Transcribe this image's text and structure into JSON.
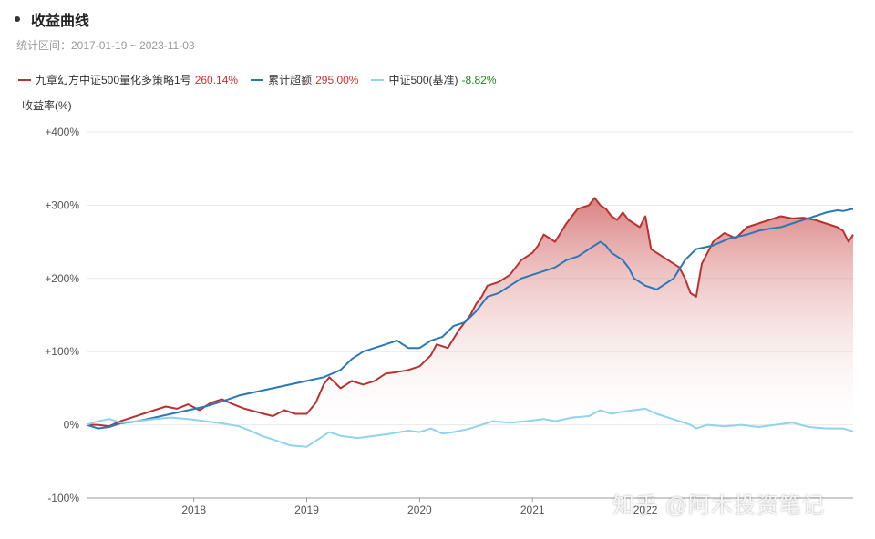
{
  "title": "收益曲线",
  "subtitle": "统计区间：2017-01-19 ~ 2023-11-03",
  "watermark": "知乎 @阿木投资笔记",
  "chart_data": {
    "type": "line",
    "title": "收益曲线",
    "ylabel": "收益率(%)",
    "xlabel": "",
    "ylim": [
      -100,
      400
    ],
    "yticks": [
      -100,
      0,
      100,
      200,
      300,
      400
    ],
    "ytick_labels": [
      "-100%",
      "0%",
      "+100%",
      "+200%",
      "+300%",
      "+400%"
    ],
    "xlim": [
      2017.05,
      2023.84
    ],
    "xticks": [
      2018,
      2019,
      2020,
      2021,
      2022
    ],
    "xtick_labels": [
      "2018",
      "2019",
      "2020",
      "2021",
      "2022"
    ],
    "grid": true,
    "legend_position": "top-left",
    "series": [
      {
        "name": "九章幻方中证500量化多策略1号",
        "value_label": "260.14%",
        "color": "#b83232",
        "value_color": "#d03030",
        "fill": true,
        "x": [
          2017.05,
          2017.15,
          2017.25,
          2017.35,
          2017.45,
          2017.55,
          2017.65,
          2017.75,
          2017.85,
          2017.95,
          2018.05,
          2018.15,
          2018.25,
          2018.35,
          2018.45,
          2018.55,
          2018.62,
          2018.7,
          2018.8,
          2018.9,
          2019.0,
          2019.08,
          2019.15,
          2019.2,
          2019.3,
          2019.4,
          2019.5,
          2019.6,
          2019.7,
          2019.8,
          2019.9,
          2020.0,
          2020.1,
          2020.15,
          2020.25,
          2020.35,
          2020.45,
          2020.5,
          2020.55,
          2020.6,
          2020.7,
          2020.8,
          2020.9,
          2021.0,
          2021.05,
          2021.1,
          2021.2,
          2021.3,
          2021.4,
          2021.5,
          2021.55,
          2021.6,
          2021.65,
          2021.7,
          2021.75,
          2021.8,
          2021.85,
          2021.9,
          2021.95,
          2022.0,
          2022.05,
          2022.1,
          2022.15,
          2022.2,
          2022.25,
          2022.3,
          2022.35,
          2022.4,
          2022.45,
          2022.5,
          2022.6,
          2022.7,
          2022.8,
          2022.9,
          2023.0,
          2023.1,
          2023.2,
          2023.3,
          2023.4,
          2023.5,
          2023.6,
          2023.7,
          2023.75,
          2023.8,
          2023.84
        ],
        "y": [
          0,
          0,
          -2,
          5,
          10,
          15,
          20,
          25,
          22,
          28,
          20,
          30,
          35,
          28,
          22,
          18,
          15,
          12,
          20,
          15,
          15,
          30,
          55,
          65,
          50,
          60,
          55,
          60,
          70,
          72,
          75,
          80,
          95,
          110,
          105,
          130,
          150,
          165,
          175,
          190,
          195,
          205,
          225,
          235,
          245,
          260,
          250,
          275,
          295,
          300,
          310,
          300,
          295,
          285,
          280,
          290,
          280,
          275,
          270,
          285,
          240,
          235,
          230,
          225,
          220,
          215,
          200,
          180,
          175,
          220,
          250,
          262,
          255,
          270,
          275,
          280,
          285,
          282,
          283,
          280,
          275,
          270,
          265,
          250,
          260
        ]
      },
      {
        "name": "累计超额",
        "value_label": "295.00%",
        "color": "#2a78b8",
        "value_color": "#d03030",
        "fill": false,
        "x": [
          2017.05,
          2017.15,
          2017.25,
          2017.35,
          2017.5,
          2017.65,
          2017.8,
          2017.95,
          2018.1,
          2018.25,
          2018.4,
          2018.55,
          2018.7,
          2018.85,
          2019.0,
          2019.15,
          2019.3,
          2019.4,
          2019.5,
          2019.6,
          2019.7,
          2019.8,
          2019.9,
          2020.0,
          2020.1,
          2020.2,
          2020.3,
          2020.4,
          2020.5,
          2020.6,
          2020.7,
          2020.8,
          2020.9,
          2021.0,
          2021.1,
          2021.2,
          2021.3,
          2021.4,
          2021.5,
          2021.6,
          2021.65,
          2021.7,
          2021.8,
          2021.85,
          2021.9,
          2022.0,
          2022.1,
          2022.2,
          2022.25,
          2022.35,
          2022.45,
          2022.6,
          2022.75,
          2022.9,
          2023.0,
          2023.1,
          2023.2,
          2023.3,
          2023.4,
          2023.5,
          2023.6,
          2023.7,
          2023.75,
          2023.84
        ],
        "y": [
          0,
          -5,
          -3,
          2,
          5,
          10,
          15,
          20,
          25,
          32,
          40,
          45,
          50,
          55,
          60,
          65,
          75,
          90,
          100,
          105,
          110,
          115,
          105,
          105,
          115,
          120,
          135,
          140,
          155,
          175,
          180,
          190,
          200,
          205,
          210,
          215,
          225,
          230,
          240,
          250,
          245,
          235,
          225,
          215,
          200,
          190,
          185,
          195,
          200,
          225,
          240,
          245,
          255,
          260,
          265,
          268,
          270,
          275,
          280,
          285,
          290,
          293,
          292,
          295
        ]
      },
      {
        "name": "中证500(基准)",
        "value_label": "-8.82%",
        "color": "#8fd3ee",
        "value_color": "#1a8a1a",
        "fill": false,
        "x": [
          2017.05,
          2017.15,
          2017.25,
          2017.35,
          2017.5,
          2017.65,
          2017.8,
          2017.95,
          2018.1,
          2018.25,
          2018.4,
          2018.5,
          2018.6,
          2018.7,
          2018.85,
          2019.0,
          2019.1,
          2019.2,
          2019.3,
          2019.45,
          2019.6,
          2019.75,
          2019.9,
          2020.0,
          2020.1,
          2020.2,
          2020.3,
          2020.45,
          2020.55,
          2020.65,
          2020.8,
          2020.95,
          2021.1,
          2021.2,
          2021.35,
          2021.5,
          2021.6,
          2021.7,
          2021.8,
          2021.9,
          2022.0,
          2022.1,
          2022.2,
          2022.3,
          2022.4,
          2022.45,
          2022.55,
          2022.7,
          2022.85,
          2023.0,
          2023.15,
          2023.3,
          2023.45,
          2023.6,
          2023.75,
          2023.84
        ],
        "y": [
          0,
          5,
          8,
          3,
          5,
          8,
          10,
          8,
          5,
          2,
          -2,
          -8,
          -15,
          -20,
          -28,
          -30,
          -20,
          -10,
          -15,
          -18,
          -15,
          -12,
          -8,
          -10,
          -5,
          -12,
          -10,
          -5,
          0,
          5,
          3,
          5,
          8,
          5,
          10,
          12,
          20,
          15,
          18,
          20,
          22,
          15,
          10,
          5,
          0,
          -5,
          0,
          -2,
          0,
          -3,
          0,
          3,
          -3,
          -5,
          -5,
          -9
        ]
      }
    ]
  }
}
